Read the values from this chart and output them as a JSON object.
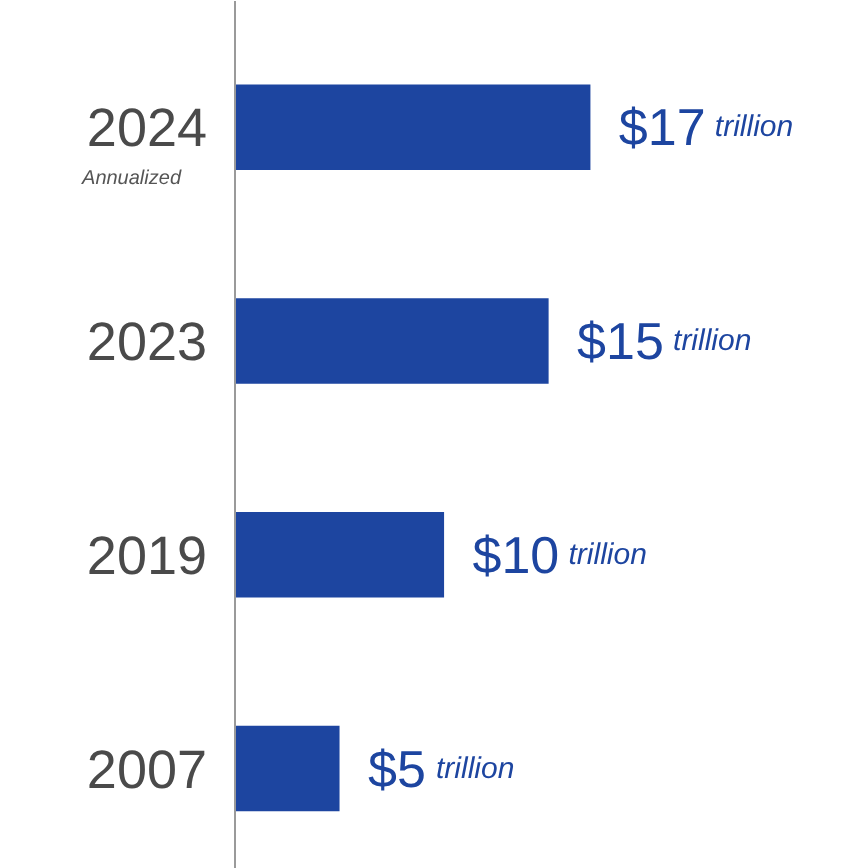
{
  "chart_data": {
    "type": "bar",
    "orientation": "horizontal",
    "categories": [
      "2024",
      "2023",
      "2019",
      "2007"
    ],
    "values": [
      17,
      15,
      10,
      5
    ],
    "value_labels": [
      "$17 trillion",
      "$15 trillion",
      "$10 trillion",
      "$5 trillion"
    ],
    "color": "#1d45a0",
    "annotations": [
      "Annualized"
    ],
    "grid": false
  }
}
